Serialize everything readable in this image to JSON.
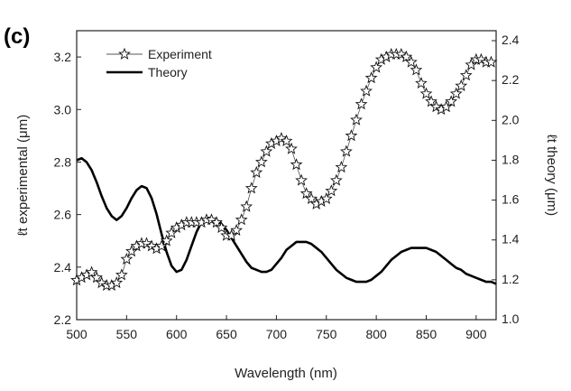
{
  "panel_label": "(c)",
  "chart_data": {
    "type": "line",
    "title": "",
    "xlabel": "Wavelength (nm)",
    "ylabel_left": "ℓt experimental (μm)",
    "ylabel_right": "ℓt theory (μm)",
    "xlim": [
      500,
      920
    ],
    "ylim_left": [
      2.2,
      3.3
    ],
    "ylim_right": [
      1.0,
      2.45
    ],
    "x_ticks": [
      500,
      550,
      600,
      650,
      700,
      750,
      800,
      850,
      900
    ],
    "y_left_ticks": [
      2.2,
      2.4,
      2.6,
      2.8,
      3.0,
      3.2
    ],
    "y_right_ticks": [
      1.0,
      1.2,
      1.4,
      1.6,
      1.8,
      2.0,
      2.2,
      2.4
    ],
    "grid": false,
    "legend_position": "top-left",
    "series": [
      {
        "name": "Experiment",
        "axis": "left",
        "marker": "star",
        "color": "#111111",
        "x": [
          500,
          505,
          510,
          515,
          520,
          525,
          530,
          535,
          540,
          545,
          550,
          555,
          560,
          565,
          570,
          575,
          580,
          585,
          590,
          595,
          600,
          605,
          610,
          615,
          620,
          625,
          630,
          635,
          640,
          645,
          650,
          655,
          660,
          665,
          670,
          675,
          680,
          685,
          690,
          695,
          700,
          705,
          710,
          715,
          720,
          725,
          730,
          735,
          740,
          745,
          750,
          755,
          760,
          765,
          770,
          775,
          780,
          785,
          790,
          795,
          800,
          805,
          810,
          815,
          820,
          825,
          830,
          835,
          840,
          845,
          850,
          855,
          860,
          865,
          870,
          875,
          880,
          885,
          890,
          895,
          900,
          905,
          910,
          915
        ],
        "y": [
          2.35,
          2.36,
          2.37,
          2.38,
          2.36,
          2.34,
          2.33,
          2.33,
          2.34,
          2.37,
          2.43,
          2.46,
          2.48,
          2.49,
          2.49,
          2.48,
          2.47,
          2.48,
          2.5,
          2.53,
          2.55,
          2.56,
          2.57,
          2.57,
          2.57,
          2.57,
          2.58,
          2.58,
          2.57,
          2.55,
          2.52,
          2.52,
          2.54,
          2.58,
          2.63,
          2.7,
          2.76,
          2.8,
          2.84,
          2.87,
          2.88,
          2.89,
          2.88,
          2.85,
          2.79,
          2.73,
          2.68,
          2.66,
          2.64,
          2.65,
          2.66,
          2.69,
          2.73,
          2.78,
          2.84,
          2.9,
          2.96,
          3.02,
          3.07,
          3.12,
          3.16,
          3.19,
          3.2,
          3.21,
          3.21,
          3.21,
          3.2,
          3.18,
          3.15,
          3.1,
          3.06,
          3.03,
          3.01,
          3.0,
          3.01,
          3.03,
          3.06,
          3.09,
          3.13,
          3.17,
          3.19,
          3.19,
          3.18,
          3.18
        ]
      },
      {
        "name": "Theory",
        "axis": "right",
        "marker": "none",
        "color": "#000000",
        "x": [
          500,
          505,
          510,
          515,
          520,
          525,
          530,
          535,
          540,
          545,
          550,
          555,
          560,
          565,
          570,
          575,
          580,
          585,
          590,
          595,
          600,
          605,
          610,
          615,
          620,
          625,
          630,
          635,
          640,
          645,
          650,
          655,
          660,
          665,
          670,
          675,
          680,
          685,
          690,
          695,
          700,
          705,
          710,
          715,
          720,
          725,
          730,
          735,
          740,
          745,
          750,
          755,
          760,
          765,
          770,
          775,
          780,
          785,
          790,
          795,
          800,
          805,
          810,
          815,
          820,
          825,
          830,
          835,
          840,
          845,
          850,
          855,
          860,
          865,
          870,
          875,
          880,
          885,
          890,
          895,
          900,
          905,
          910,
          915,
          920
        ],
        "y": [
          1.8,
          1.81,
          1.79,
          1.75,
          1.69,
          1.62,
          1.56,
          1.52,
          1.5,
          1.52,
          1.56,
          1.61,
          1.65,
          1.67,
          1.66,
          1.61,
          1.53,
          1.43,
          1.34,
          1.27,
          1.24,
          1.25,
          1.3,
          1.37,
          1.44,
          1.49,
          1.51,
          1.51,
          1.5,
          1.48,
          1.45,
          1.41,
          1.37,
          1.33,
          1.29,
          1.26,
          1.25,
          1.24,
          1.24,
          1.25,
          1.28,
          1.31,
          1.35,
          1.37,
          1.39,
          1.39,
          1.39,
          1.38,
          1.36,
          1.34,
          1.31,
          1.28,
          1.25,
          1.23,
          1.21,
          1.2,
          1.19,
          1.19,
          1.19,
          1.2,
          1.22,
          1.24,
          1.27,
          1.3,
          1.32,
          1.34,
          1.35,
          1.36,
          1.36,
          1.36,
          1.36,
          1.35,
          1.34,
          1.32,
          1.3,
          1.28,
          1.26,
          1.25,
          1.23,
          1.22,
          1.21,
          1.2,
          1.19,
          1.19,
          1.18
        ]
      }
    ]
  }
}
